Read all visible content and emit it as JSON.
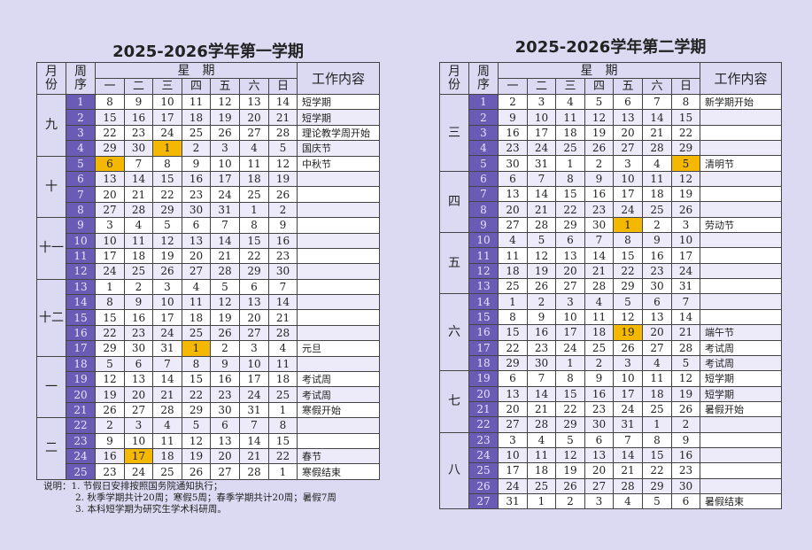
{
  "calendars": [
    {
      "title": "2025-2026学年第一学期",
      "header": {
        "month": "月份",
        "week": "周序",
        "weekday_group": "星　期",
        "days": [
          "一",
          "二",
          "三",
          "四",
          "五",
          "六",
          "日"
        ],
        "work": "工作内容"
      },
      "rows": [
        {
          "month": "九",
          "week": "1",
          "days": [
            "8",
            "9",
            "10",
            "11",
            "12",
            "13",
            "14"
          ],
          "hl": -1,
          "work": "短学期"
        },
        {
          "week": "2",
          "days": [
            "15",
            "16",
            "17",
            "18",
            "19",
            "20",
            "21"
          ],
          "hl": -1,
          "work": "短学期"
        },
        {
          "week": "3",
          "days": [
            "22",
            "23",
            "24",
            "25",
            "26",
            "27",
            "28"
          ],
          "hl": -1,
          "work": "理论教学周开始"
        },
        {
          "week": "4",
          "days": [
            "29",
            "30",
            "1",
            "2",
            "3",
            "4",
            "5"
          ],
          "hl": 2,
          "work": "国庆节"
        },
        {
          "month": "十",
          "week": "5",
          "days": [
            "6",
            "7",
            "8",
            "9",
            "10",
            "11",
            "12"
          ],
          "hl": 0,
          "work": "中秋节"
        },
        {
          "week": "6",
          "days": [
            "13",
            "14",
            "15",
            "16",
            "17",
            "18",
            "19"
          ],
          "hl": -1,
          "work": ""
        },
        {
          "week": "7",
          "days": [
            "20",
            "21",
            "22",
            "23",
            "24",
            "25",
            "26"
          ],
          "hl": -1,
          "work": ""
        },
        {
          "week": "8",
          "days": [
            "27",
            "28",
            "29",
            "30",
            "31",
            "1",
            "2"
          ],
          "hl": -1,
          "work": ""
        },
        {
          "month": "十一",
          "week": "9",
          "days": [
            "3",
            "4",
            "5",
            "6",
            "7",
            "8",
            "9"
          ],
          "hl": -1,
          "work": ""
        },
        {
          "week": "10",
          "days": [
            "10",
            "11",
            "12",
            "13",
            "14",
            "15",
            "16"
          ],
          "hl": -1,
          "work": ""
        },
        {
          "week": "11",
          "days": [
            "17",
            "18",
            "19",
            "20",
            "21",
            "22",
            "23"
          ],
          "hl": -1,
          "work": ""
        },
        {
          "week": "12",
          "days": [
            "24",
            "25",
            "26",
            "27",
            "28",
            "29",
            "30"
          ],
          "hl": -1,
          "work": ""
        },
        {
          "month": "十二",
          "week": "13",
          "days": [
            "1",
            "2",
            "3",
            "4",
            "5",
            "6",
            "7"
          ],
          "hl": -1,
          "work": ""
        },
        {
          "week": "14",
          "days": [
            "8",
            "9",
            "10",
            "11",
            "12",
            "13",
            "14"
          ],
          "hl": -1,
          "work": ""
        },
        {
          "week": "15",
          "days": [
            "15",
            "16",
            "17",
            "18",
            "19",
            "20",
            "21"
          ],
          "hl": -1,
          "work": ""
        },
        {
          "week": "16",
          "days": [
            "22",
            "23",
            "24",
            "25",
            "26",
            "27",
            "28"
          ],
          "hl": -1,
          "work": ""
        },
        {
          "week": "17",
          "days": [
            "29",
            "30",
            "31",
            "1",
            "2",
            "3",
            "4"
          ],
          "hl": 3,
          "work": "元旦"
        },
        {
          "month": "一",
          "week": "18",
          "days": [
            "5",
            "6",
            "7",
            "8",
            "9",
            "10",
            "11"
          ],
          "hl": -1,
          "work": ""
        },
        {
          "week": "19",
          "days": [
            "12",
            "13",
            "14",
            "15",
            "16",
            "17",
            "18"
          ],
          "hl": -1,
          "work": "考试周"
        },
        {
          "week": "20",
          "days": [
            "19",
            "20",
            "21",
            "22",
            "23",
            "24",
            "25"
          ],
          "hl": -1,
          "work": "考试周"
        },
        {
          "week": "21",
          "days": [
            "26",
            "27",
            "28",
            "29",
            "30",
            "31",
            "1"
          ],
          "hl": -1,
          "work": "寒假开始"
        },
        {
          "month": "二",
          "week": "22",
          "days": [
            "2",
            "3",
            "4",
            "5",
            "6",
            "7",
            "8"
          ],
          "hl": -1,
          "work": ""
        },
        {
          "week": "23",
          "days": [
            "9",
            "10",
            "11",
            "12",
            "13",
            "14",
            "15"
          ],
          "hl": -1,
          "work": ""
        },
        {
          "week": "24",
          "days": [
            "16",
            "17",
            "18",
            "19",
            "20",
            "21",
            "22"
          ],
          "hl": 1,
          "work": "春节"
        },
        {
          "week": "25",
          "days": [
            "23",
            "24",
            "25",
            "26",
            "27",
            "28",
            "1"
          ],
          "hl": -1,
          "work": "寒假结束"
        }
      ]
    },
    {
      "title": "2025-2026学年第二学期",
      "header": {
        "month": "月份",
        "week": "周序",
        "weekday_group": "星　期",
        "days": [
          "一",
          "二",
          "三",
          "四",
          "五",
          "六",
          "日"
        ],
        "work": "工作内容"
      },
      "rows": [
        {
          "month": "三",
          "week": "1",
          "days": [
            "2",
            "3",
            "4",
            "5",
            "6",
            "7",
            "8"
          ],
          "hl": -1,
          "work": "新学期开始"
        },
        {
          "week": "2",
          "days": [
            "9",
            "10",
            "11",
            "12",
            "13",
            "14",
            "15"
          ],
          "hl": -1,
          "work": ""
        },
        {
          "week": "3",
          "days": [
            "16",
            "17",
            "18",
            "19",
            "20",
            "21",
            "22"
          ],
          "hl": -1,
          "work": ""
        },
        {
          "week": "4",
          "days": [
            "23",
            "24",
            "25",
            "26",
            "27",
            "28",
            "29"
          ],
          "hl": -1,
          "work": ""
        },
        {
          "week": "5",
          "days": [
            "30",
            "31",
            "1",
            "2",
            "3",
            "4",
            "5"
          ],
          "hl": 6,
          "work": "清明节"
        },
        {
          "month": "四",
          "week": "6",
          "days": [
            "6",
            "7",
            "8",
            "9",
            "10",
            "11",
            "12"
          ],
          "hl": -1,
          "work": ""
        },
        {
          "week": "7",
          "days": [
            "13",
            "14",
            "15",
            "16",
            "17",
            "18",
            "19"
          ],
          "hl": -1,
          "work": ""
        },
        {
          "week": "8",
          "days": [
            "20",
            "21",
            "22",
            "23",
            "24",
            "25",
            "26"
          ],
          "hl": -1,
          "work": ""
        },
        {
          "week": "9",
          "days": [
            "27",
            "28",
            "29",
            "30",
            "1",
            "2",
            "3"
          ],
          "hl": 4,
          "work": "劳动节"
        },
        {
          "month": "五",
          "week": "10",
          "days": [
            "4",
            "5",
            "6",
            "7",
            "8",
            "9",
            "10"
          ],
          "hl": -1,
          "work": ""
        },
        {
          "week": "11",
          "days": [
            "11",
            "12",
            "13",
            "14",
            "15",
            "16",
            "17"
          ],
          "hl": -1,
          "work": ""
        },
        {
          "week": "12",
          "days": [
            "18",
            "19",
            "20",
            "21",
            "22",
            "23",
            "24"
          ],
          "hl": -1,
          "work": ""
        },
        {
          "week": "13",
          "days": [
            "25",
            "26",
            "27",
            "28",
            "29",
            "30",
            "31"
          ],
          "hl": -1,
          "work": ""
        },
        {
          "month": "六",
          "week": "14",
          "days": [
            "1",
            "2",
            "3",
            "4",
            "5",
            "6",
            "7"
          ],
          "hl": -1,
          "work": ""
        },
        {
          "week": "15",
          "days": [
            "8",
            "9",
            "10",
            "11",
            "12",
            "13",
            "14"
          ],
          "hl": -1,
          "work": ""
        },
        {
          "week": "16",
          "days": [
            "15",
            "16",
            "17",
            "18",
            "19",
            "20",
            "21"
          ],
          "hl": 4,
          "work": "端午节"
        },
        {
          "week": "17",
          "days": [
            "22",
            "23",
            "24",
            "25",
            "26",
            "27",
            "28"
          ],
          "hl": -1,
          "work": "考试周"
        },
        {
          "week": "18",
          "days": [
            "29",
            "30",
            "1",
            "2",
            "3",
            "4",
            "5"
          ],
          "hl": -1,
          "work": "考试周"
        },
        {
          "month": "七",
          "week": "19",
          "days": [
            "6",
            "7",
            "8",
            "9",
            "10",
            "11",
            "12"
          ],
          "hl": -1,
          "work": "短学期"
        },
        {
          "week": "20",
          "days": [
            "13",
            "14",
            "15",
            "16",
            "17",
            "18",
            "19"
          ],
          "hl": -1,
          "work": "短学期"
        },
        {
          "week": "21",
          "days": [
            "20",
            "21",
            "22",
            "23",
            "24",
            "25",
            "26"
          ],
          "hl": -1,
          "work": "暑假开始"
        },
        {
          "week": "22",
          "days": [
            "27",
            "28",
            "29",
            "30",
            "31",
            "1",
            "2"
          ],
          "hl": -1,
          "work": ""
        },
        {
          "month": "八",
          "week": "23",
          "days": [
            "3",
            "4",
            "5",
            "6",
            "7",
            "8",
            "9"
          ],
          "hl": -1,
          "work": ""
        },
        {
          "week": "24",
          "days": [
            "10",
            "11",
            "12",
            "13",
            "14",
            "15",
            "16"
          ],
          "hl": -1,
          "work": ""
        },
        {
          "week": "25",
          "days": [
            "17",
            "18",
            "19",
            "20",
            "21",
            "22",
            "23"
          ],
          "hl": -1,
          "work": ""
        },
        {
          "week": "26",
          "days": [
            "24",
            "25",
            "26",
            "27",
            "28",
            "29",
            "30"
          ],
          "hl": -1,
          "work": ""
        },
        {
          "week": "27",
          "days": [
            "31",
            "1",
            "2",
            "3",
            "4",
            "5",
            "6"
          ],
          "hl": -1,
          "work": "暑假结束"
        }
      ]
    }
  ],
  "notes": {
    "line1": "说明：1. 节假日安排按照国务院通知执行；",
    "line2": "2. 秋季学期共计20周；寒假5周；春季学期共计20周；暑假7周",
    "line3": "3. 本科短学期为研究生学术科研周。"
  },
  "colors": {
    "week_col": "#6a5bb5",
    "highlight": "#f5b800",
    "header_bg": "#dcdaf2",
    "alt_row": "#edeaf9"
  }
}
